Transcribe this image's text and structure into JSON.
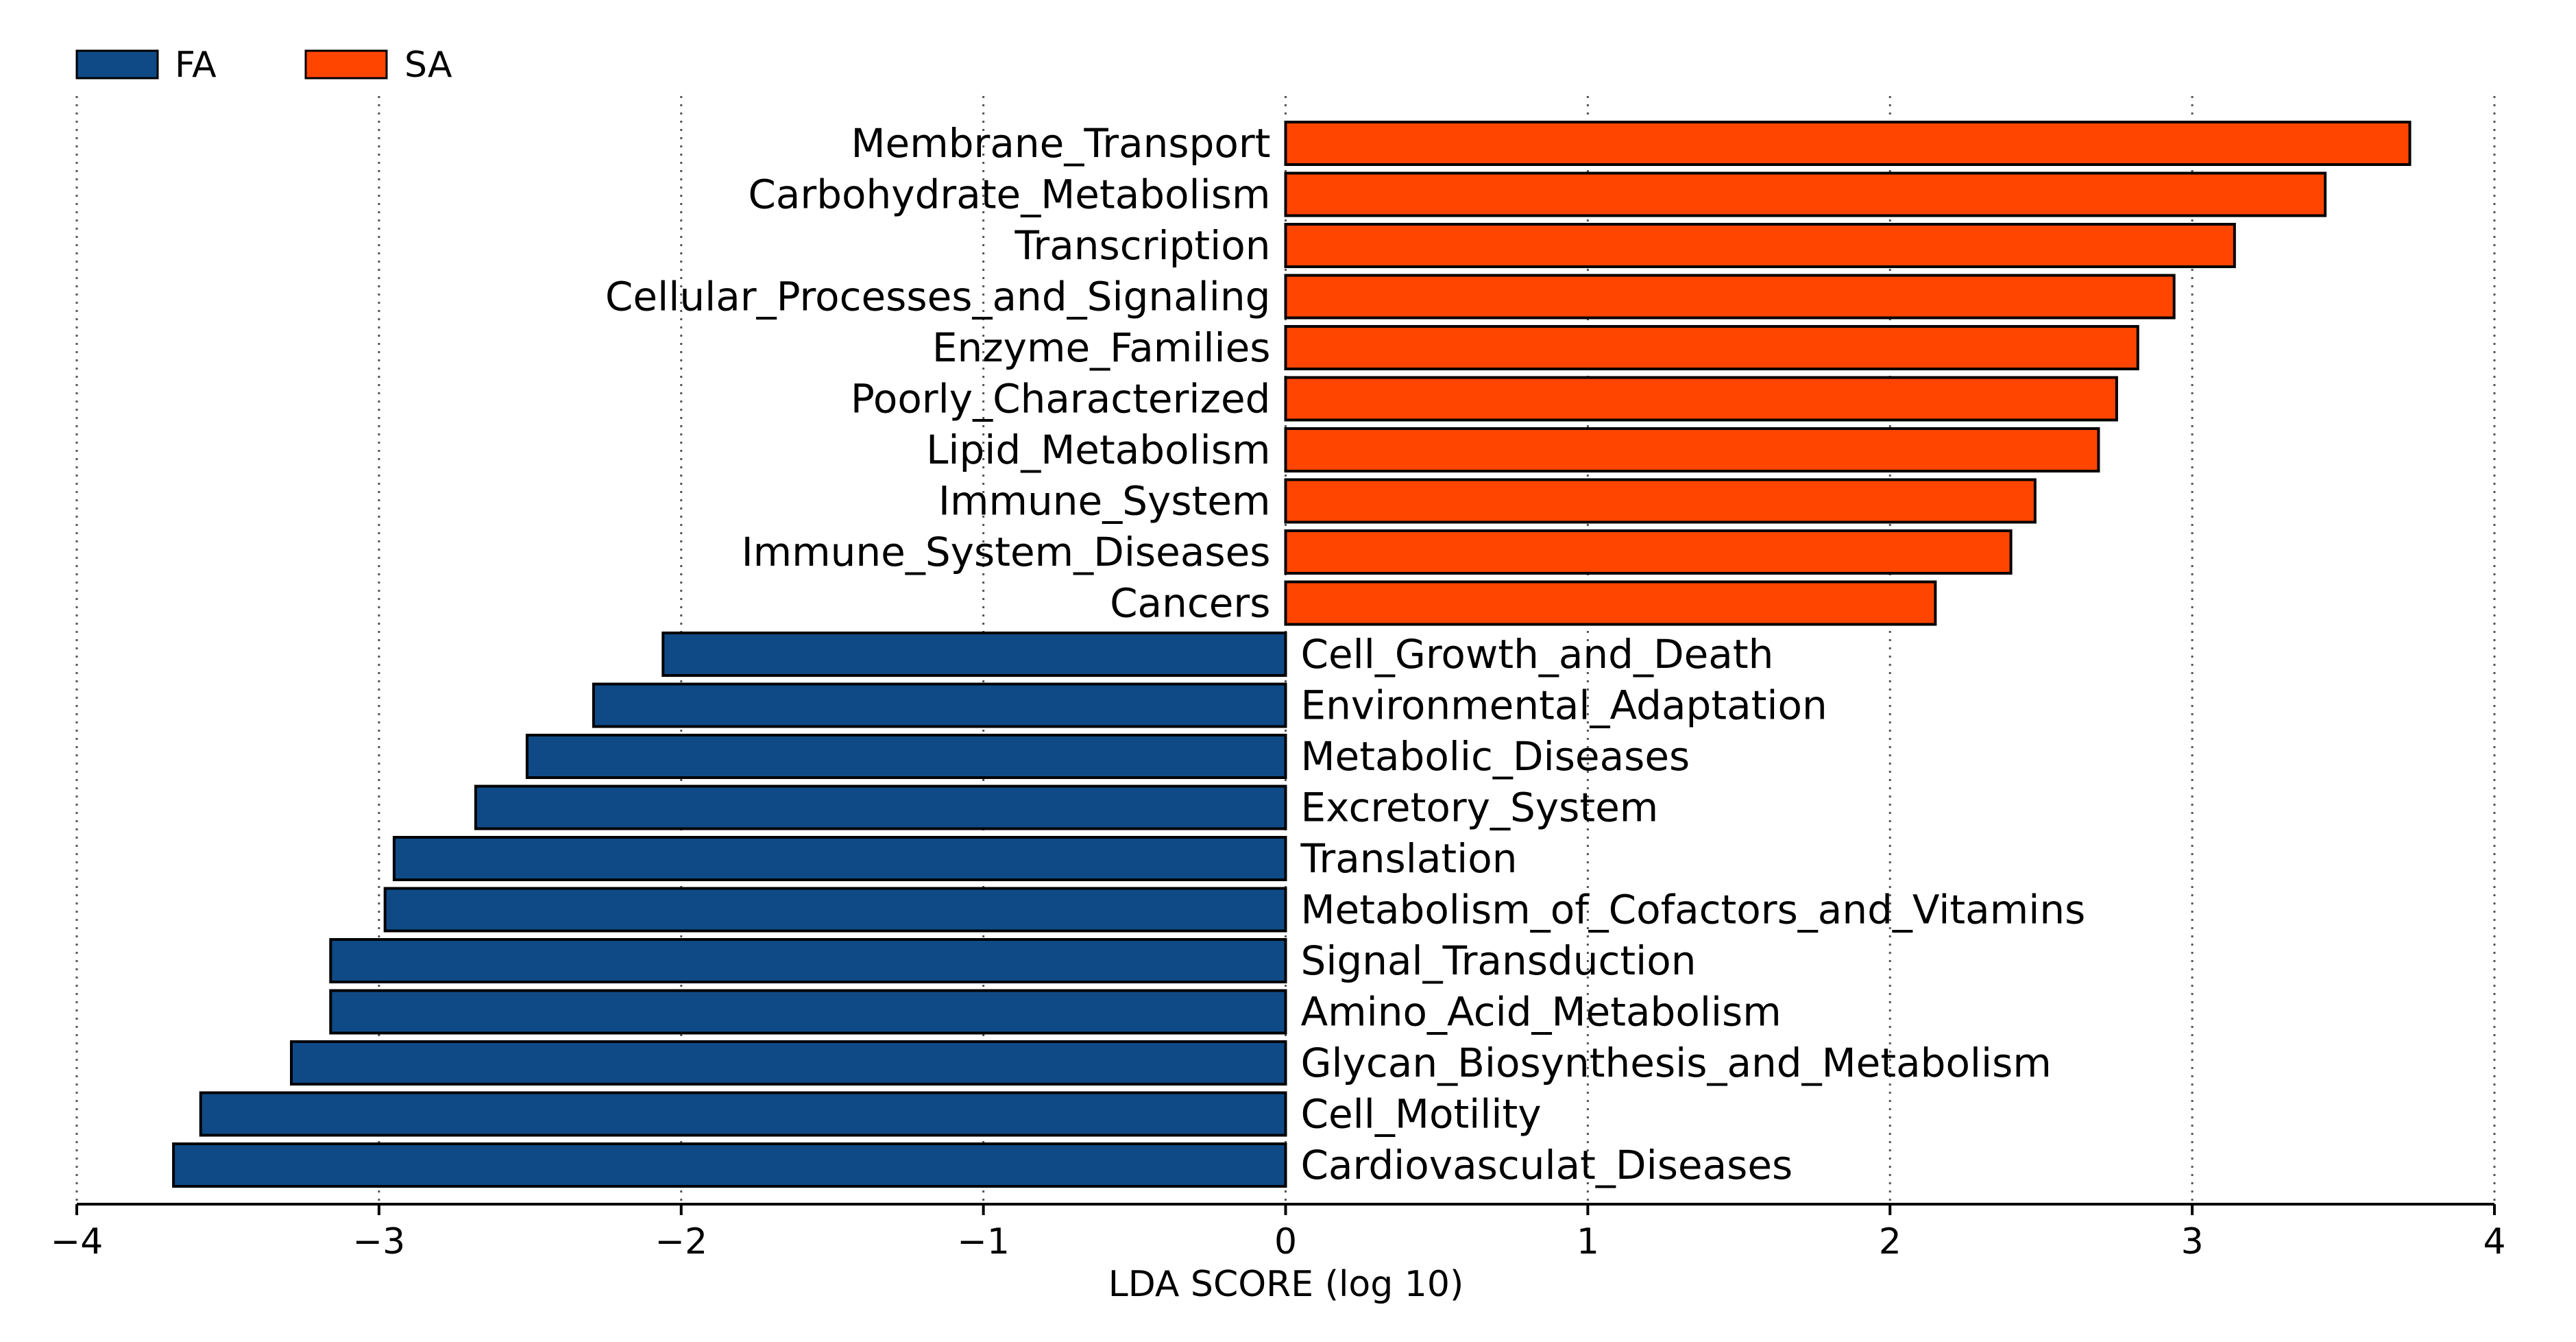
{
  "chart_data": {
    "type": "bar",
    "orientation": "horizontal",
    "xlabel": "LDA SCORE (log 10)",
    "xlim": [
      -4,
      4
    ],
    "xticks": [
      -4,
      -3,
      -2,
      -1,
      0,
      1,
      2,
      3,
      4
    ],
    "xtick_labels": [
      "−4",
      "−3",
      "−2",
      "−1",
      "0",
      "1",
      "2",
      "3",
      "4"
    ],
    "grid": "vertical dotted",
    "legend": {
      "placement": "top-left",
      "entries": [
        {
          "name": "FA",
          "color": "#0f4a87"
        },
        {
          "name": "SA",
          "color": "#ff4500"
        }
      ]
    },
    "categories": [
      "Membrane_Transport",
      "Carbohydrate_Metabolism",
      "Transcription",
      "Cellular_Processes_and_Signaling",
      "Enzyme_Families",
      "Poorly_Characterized",
      "Lipid_Metabolism",
      "Immune_System",
      "Immune_System_Diseases",
      "Cancers",
      "Cell_Growth_and_Death",
      "Environmental_Adaptation",
      "Metabolic_Diseases",
      "Excretory_System",
      "Translation",
      "Metabolism_of_Cofactors_and_Vitamins",
      "Signal_Transduction",
      "Amino_Acid_Metabolism",
      "Glycan_Biosynthesis_and_Metabolism",
      "Cell_Motility",
      "Cardiovasculat_Diseases"
    ],
    "values": [
      3.72,
      3.44,
      3.14,
      2.94,
      2.82,
      2.75,
      2.69,
      2.48,
      2.4,
      2.15,
      -2.06,
      -2.29,
      -2.51,
      -2.68,
      -2.95,
      -2.98,
      -3.16,
      -3.16,
      -3.29,
      -3.59,
      -3.68
    ],
    "groups": [
      "SA",
      "SA",
      "SA",
      "SA",
      "SA",
      "SA",
      "SA",
      "SA",
      "SA",
      "SA",
      "FA",
      "FA",
      "FA",
      "FA",
      "FA",
      "FA",
      "FA",
      "FA",
      "FA",
      "FA",
      "FA"
    ]
  }
}
